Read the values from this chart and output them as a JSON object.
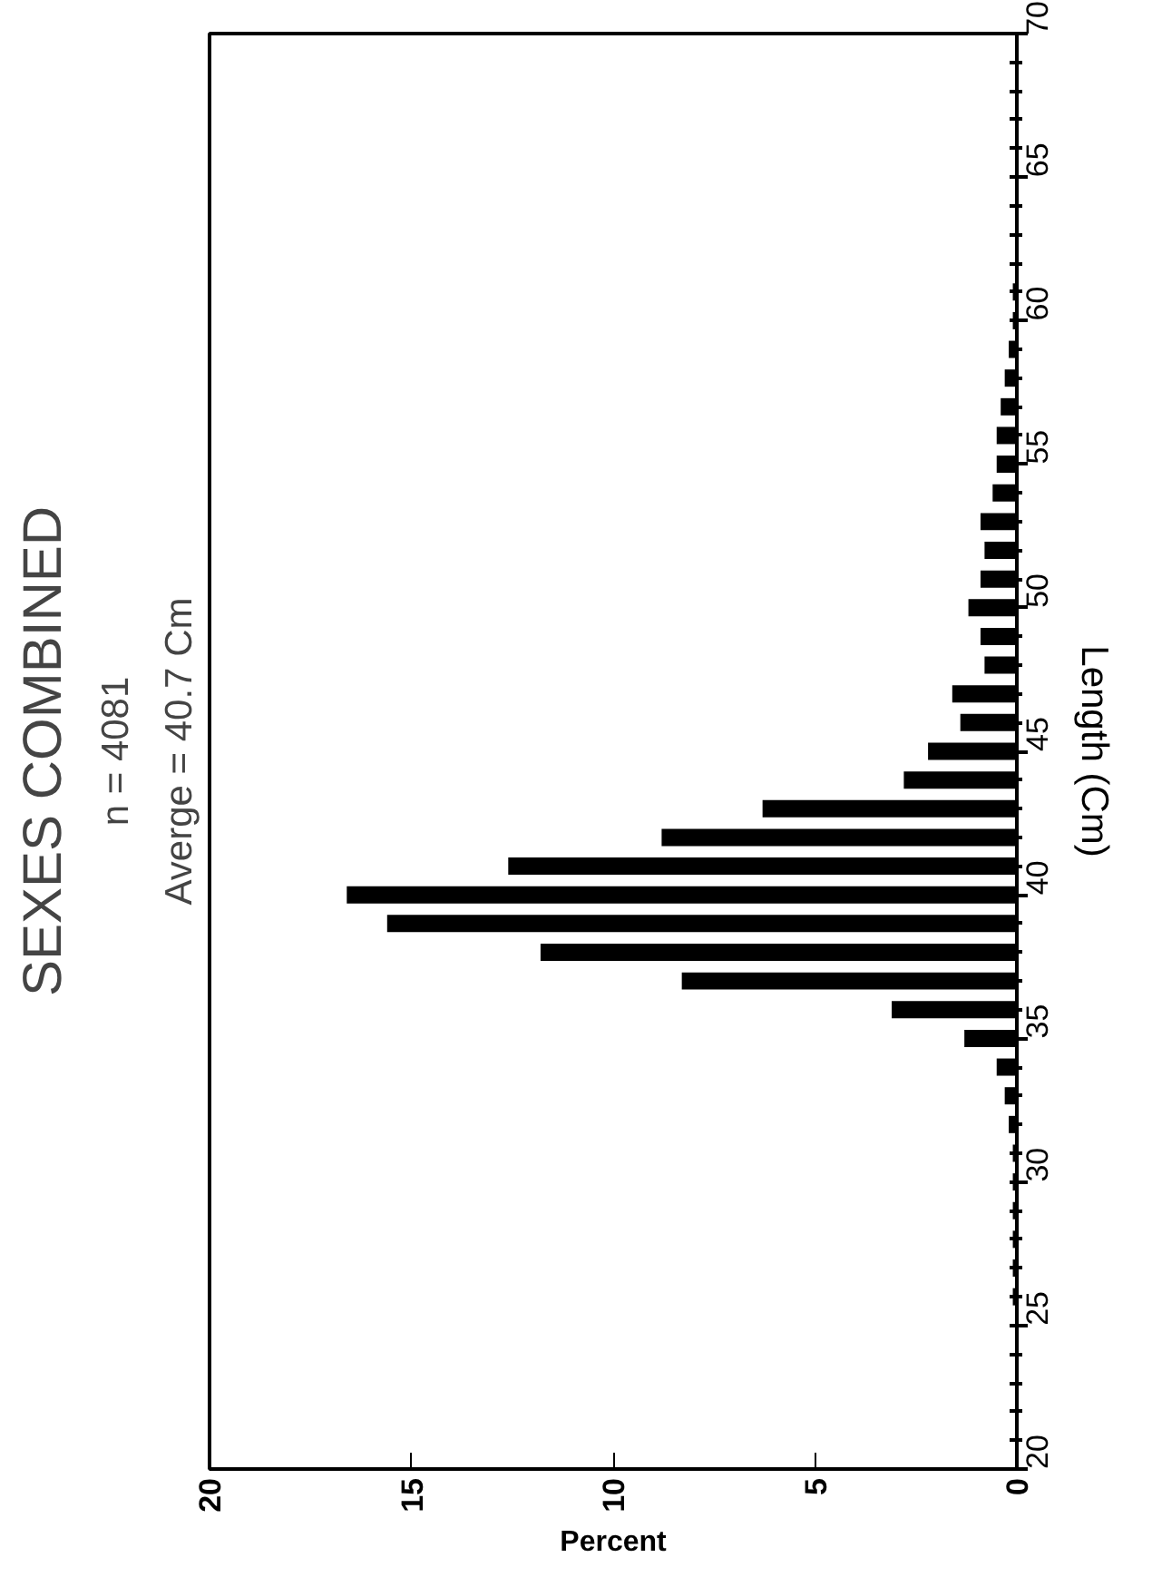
{
  "chart_data": {
    "type": "histogram",
    "orientation": "horizontal",
    "title": "SEXES COMBINED",
    "subtitle": "n = 4081",
    "annotations": [
      "Averge = 40.7 Cm"
    ],
    "xlabel": "Percent",
    "ylabel": "Length (Cm)",
    "bins": [
      25.5,
      26.5,
      27.5,
      28.5,
      29.5,
      30.5,
      31.5,
      32.5,
      33.5,
      34.5,
      35.5,
      36.5,
      37.5,
      38.5,
      39.5,
      40.5,
      41.5,
      42.5,
      43.5,
      44.5,
      45.5,
      46.5,
      47.5,
      48.5,
      49.5,
      50.5,
      51.5,
      52.5,
      53.5,
      54.5,
      55.5,
      56.5,
      57.5,
      58.5,
      59.5,
      60.5,
      61.5
    ],
    "values": [
      0.1,
      0.1,
      0.1,
      0.1,
      0.1,
      0.1,
      0.2,
      0.3,
      0.5,
      1.3,
      3.1,
      8.3,
      11.8,
      15.6,
      16.6,
      12.6,
      8.8,
      6.3,
      2.8,
      2.2,
      1.4,
      1.6,
      0.8,
      0.9,
      1.2,
      0.9,
      0.8,
      0.9,
      0.6,
      0.5,
      0.5,
      0.4,
      0.3,
      0.2,
      0.1,
      0.1
    ],
    "color": "#000000",
    "xlim": [
      20,
      0
    ],
    "xticks": [
      20,
      15,
      10,
      5,
      0
    ],
    "ylim": [
      20,
      70
    ],
    "yticks": [
      20,
      {
        "value": 21,
        "label": null
      },
      {
        "value": 22,
        "label": null
      },
      {
        "value": 23,
        "label": null
      },
      {
        "value": 24,
        "label": null
      },
      25,
      {
        "value": 26,
        "label": null
      },
      {
        "value": 27,
        "label": null
      },
      {
        "value": 28,
        "label": null
      },
      {
        "value": 29,
        "label": null
      },
      30,
      {
        "value": 31,
        "label": null
      },
      {
        "value": 32,
        "label": null
      },
      {
        "value": 33,
        "label": null
      },
      {
        "value": 34,
        "label": null
      },
      35,
      {
        "value": 36,
        "label": null
      },
      {
        "value": 37,
        "label": null
      },
      {
        "value": 38,
        "label": null
      },
      {
        "value": 39,
        "label": null
      },
      40,
      {
        "value": 41,
        "label": null
      },
      {
        "value": 42,
        "label": null
      },
      {
        "value": 43,
        "label": null
      },
      {
        "value": 44,
        "label": null
      },
      45,
      {
        "value": 46,
        "label": null
      },
      {
        "value": 47,
        "label": null
      },
      {
        "value": 48,
        "label": null
      },
      {
        "value": 49,
        "label": null
      },
      50,
      {
        "value": 51,
        "label": null
      },
      {
        "value": 52,
        "label": null
      },
      {
        "value": 53,
        "label": null
      },
      {
        "value": 54,
        "label": null
      },
      55,
      {
        "value": 56,
        "label": null
      },
      {
        "value": 57,
        "label": null
      },
      {
        "value": 58,
        "label": null
      },
      {
        "value": 59,
        "label": null
      },
      60,
      {
        "value": 61,
        "label": null
      },
      {
        "value": 62,
        "label": null
      },
      {
        "value": 63,
        "label": null
      },
      {
        "value": 64,
        "label": null
      },
      65,
      {
        "value": 66,
        "label": null
      },
      {
        "value": 67,
        "label": null
      },
      {
        "value": 68,
        "label": null
      },
      {
        "value": 69,
        "label": null
      },
      70
    ],
    "grid": false
  }
}
